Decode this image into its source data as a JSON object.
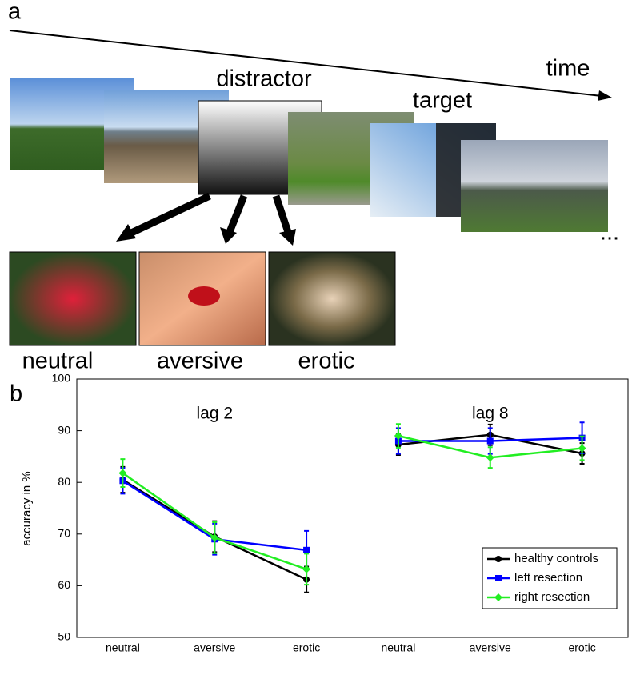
{
  "panel_labels": [
    "a",
    "b"
  ],
  "diagram": {
    "time": "time",
    "distractor": "distractor",
    "target": "target",
    "ellipsis": "...",
    "categories": [
      "neutral",
      "aversive",
      "erotic"
    ]
  },
  "chart_data": {
    "type": "line",
    "categories": [
      "neutral",
      "aversive",
      "erotic",
      "neutral",
      "aversive",
      "erotic"
    ],
    "annotations": [
      "lag 2",
      "lag 8"
    ],
    "ylabel": "accuracy in %",
    "ylim": [
      50,
      100
    ],
    "yticks": [
      50,
      60,
      70,
      80,
      90,
      100
    ],
    "legend": "lower right",
    "series": [
      {
        "name": "healthy controls",
        "color": "#000000",
        "marker": "circle",
        "values": [
          80.5,
          69.5,
          61.2,
          87.3,
          89.2,
          85.6
        ],
        "errors": [
          2.5,
          3,
          2.5,
          2,
          2,
          2
        ]
      },
      {
        "name": "left resection",
        "color": "#0000ff",
        "marker": "square",
        "values": [
          80.3,
          69.0,
          66.9,
          88.0,
          88.0,
          88.6
        ],
        "errors": [
          2.5,
          3,
          3.7,
          2.5,
          2.5,
          3
        ]
      },
      {
        "name": "right resection",
        "color": "#22ee22",
        "marker": "diamond",
        "values": [
          81.8,
          69.3,
          63.2,
          89.0,
          84.8,
          86.6
        ],
        "errors": [
          2.7,
          3,
          3,
          2.3,
          2,
          2.3
        ]
      }
    ]
  }
}
